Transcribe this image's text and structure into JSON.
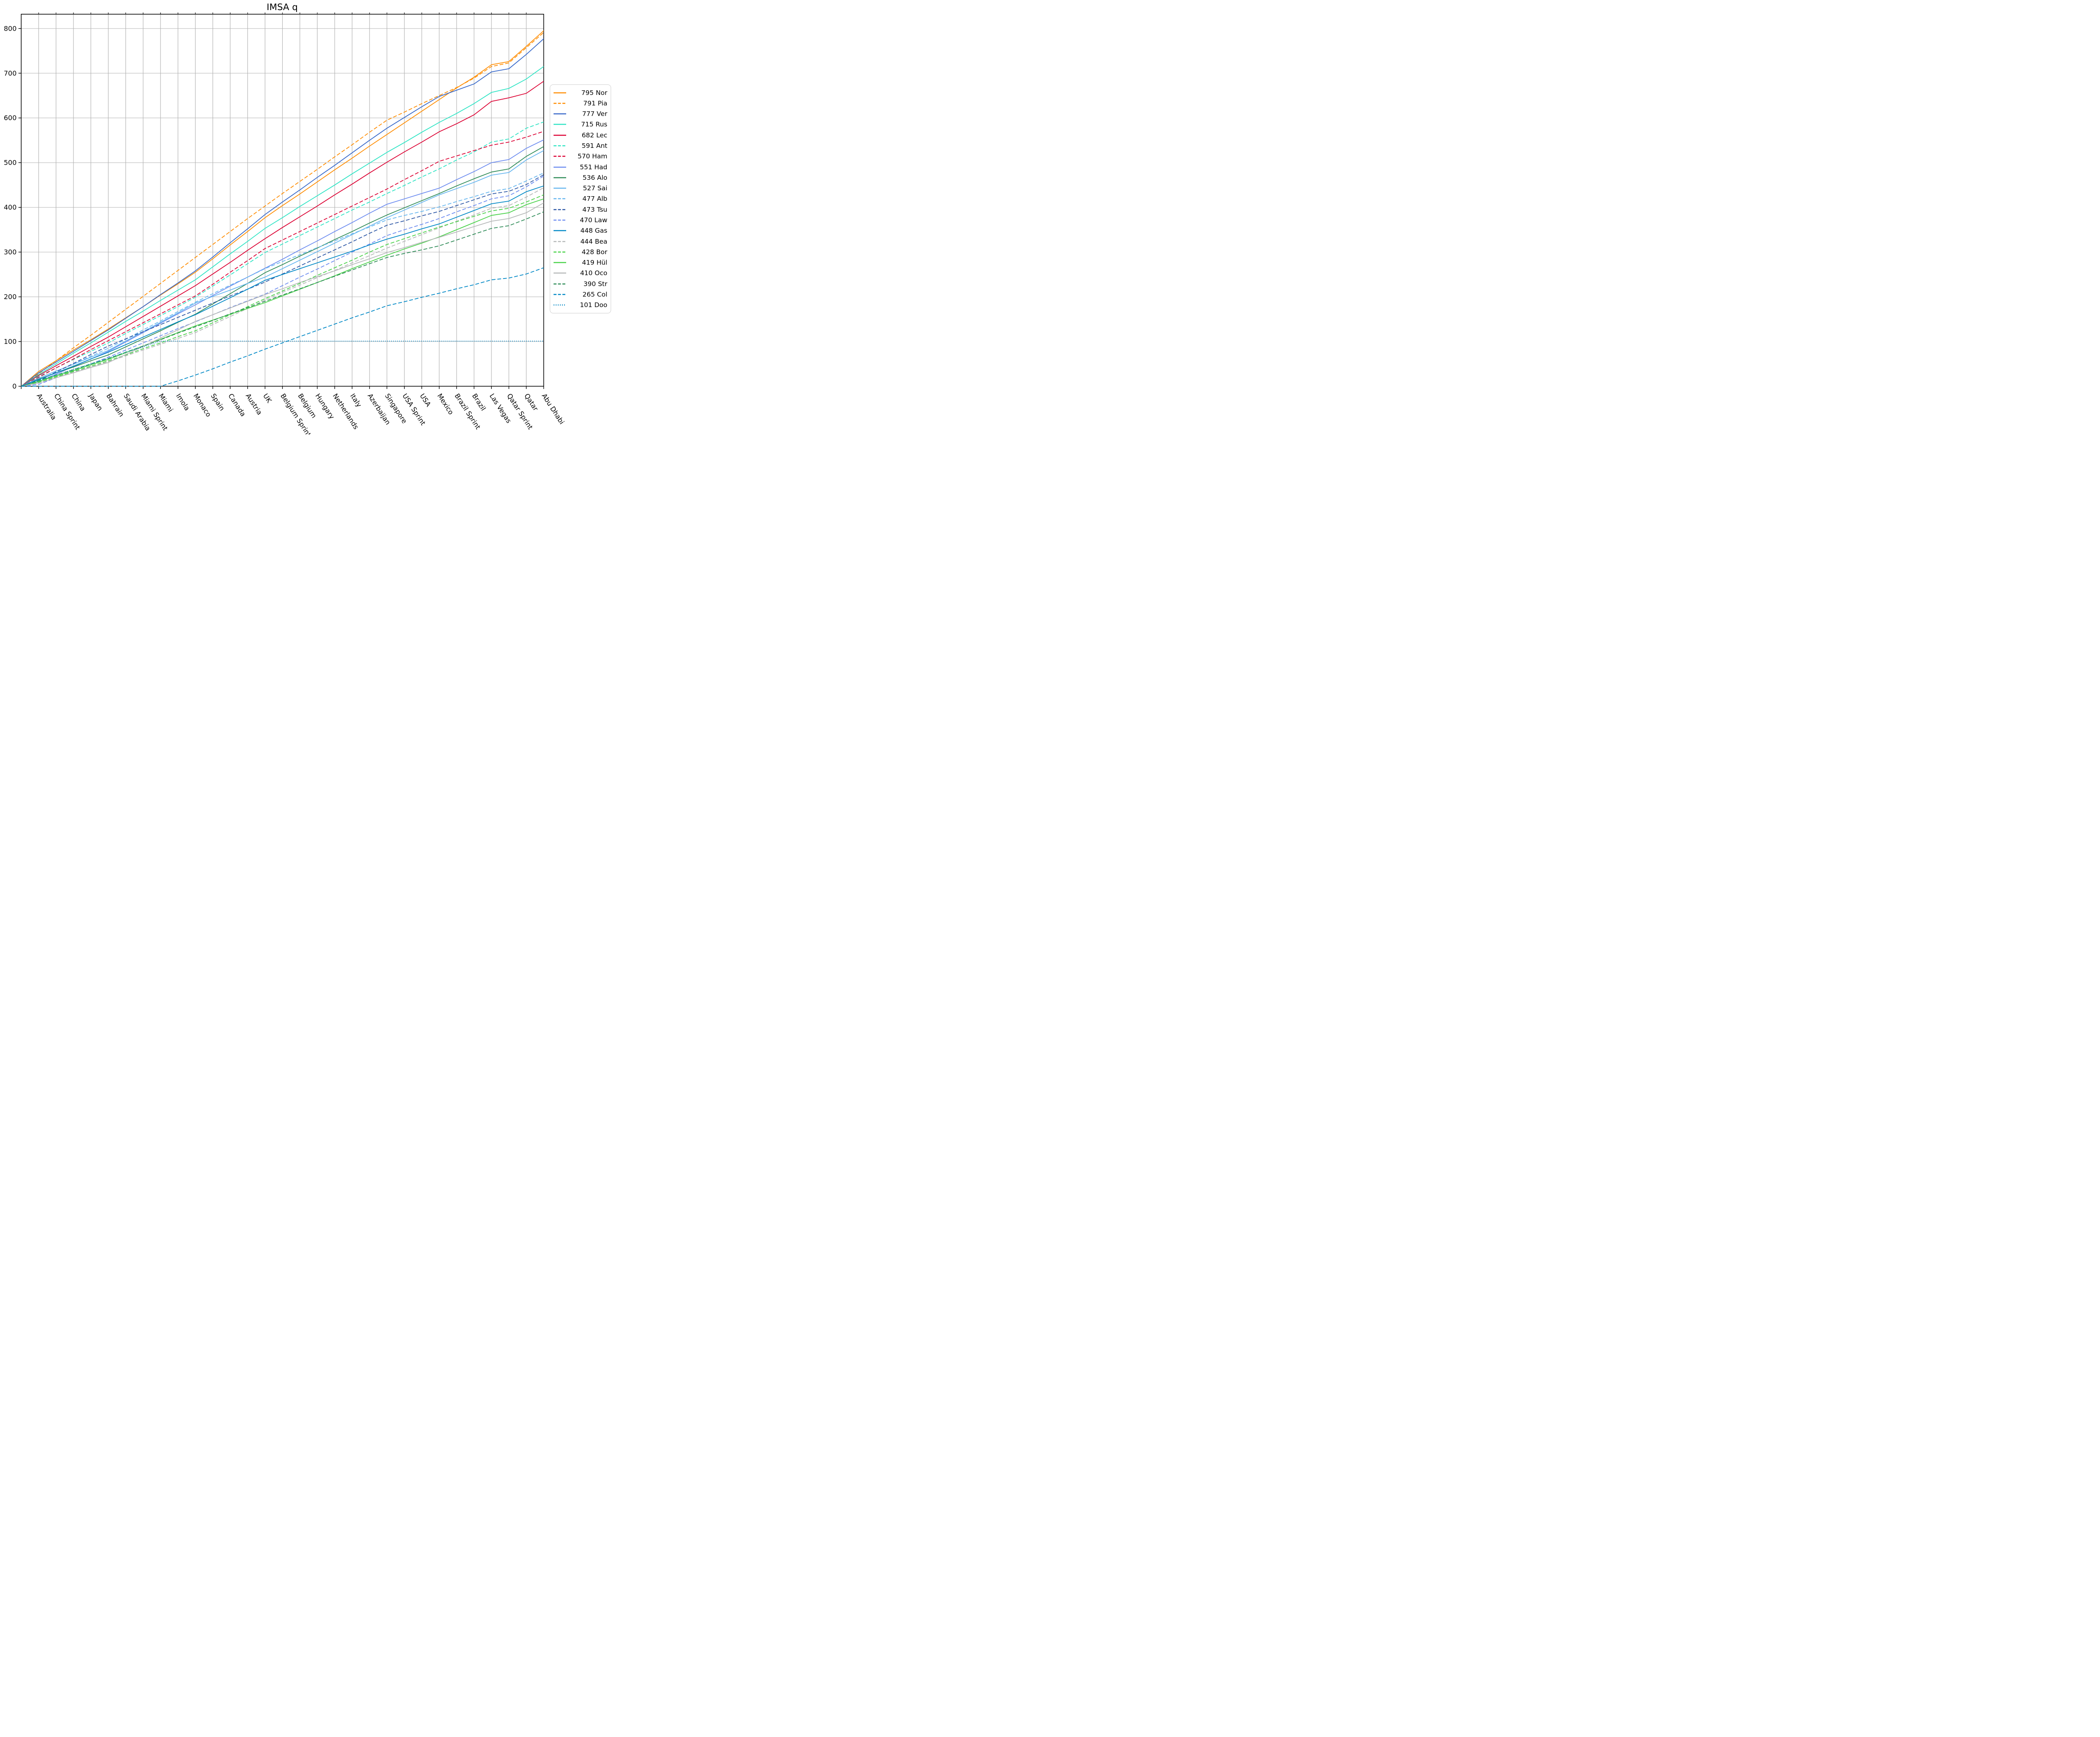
{
  "chart_data": {
    "type": "line",
    "title": "IMSA q",
    "xlabel": "",
    "ylabel": "",
    "ylim": [
      0,
      832
    ],
    "yticks": [
      0,
      100,
      200,
      300,
      400,
      500,
      600,
      700,
      800
    ],
    "grid": true,
    "grid_color": "#b3b3b3",
    "legend_position": "right",
    "x_tick_rotation": 57,
    "note_all_series_start_at_zero": true,
    "categories": [
      "Australia",
      "China Sprint",
      "China",
      "Japan",
      "Bahrain",
      "Saudi Arabia",
      "Miami Sprint",
      "Miami",
      "Imola",
      "Monaco",
      "Spain",
      "Canada",
      "Austria",
      "UK",
      "Belgium Sprint",
      "Belgium",
      "Hungary",
      "Netherlands",
      "Italy",
      "Azerbaijan",
      "Singapore",
      "USA Sprint",
      "USA",
      "Mexico",
      "Brazil Sprint",
      "Brazil",
      "Las Vegas",
      "Qatar Sprint",
      "Qatar",
      "Abu Dhabi"
    ],
    "series": [
      {
        "name": "795 Nor",
        "style": "solid",
        "color": "#ff8c00",
        "values": [
          33,
          57,
          81,
          104,
          128,
          153,
          178,
          204,
          229,
          255,
          285,
          316,
          346,
          377,
          404,
          430,
          457,
          484,
          510,
          537,
          563,
          589,
          615,
          641,
          667,
          691,
          719,
          726,
          760,
          795
        ]
      },
      {
        "name": "791 Pia",
        "style": "dashed",
        "color": "#ff8c00",
        "values": [
          28,
          57,
          86,
          114,
          143,
          172,
          201,
          230,
          259,
          288,
          317,
          346,
          375,
          403,
          431,
          458,
          485,
          513,
          540,
          568,
          595,
          613,
          632,
          650,
          668,
          689,
          715,
          723,
          757,
          791
        ]
      },
      {
        "name": "777 Ver",
        "style": "solid",
        "color": "#3567c9",
        "values": [
          30,
          54,
          78,
          102,
          126,
          152,
          178,
          205,
          231,
          258,
          289,
          321,
          352,
          384,
          412,
          439,
          467,
          494,
          522,
          550,
          577,
          601,
          625,
          648,
          662,
          676,
          703,
          710,
          742,
          777
        ]
      },
      {
        "name": "715 Rus",
        "style": "solid",
        "color": "#2ee4c4",
        "values": [
          26,
          50,
          74,
          97,
          121,
          145,
          168,
          192,
          215,
          238,
          267,
          296,
          324,
          353,
          377,
          402,
          426,
          450,
          475,
          499,
          523,
          545,
          568,
          590,
          610,
          632,
          657,
          666,
          687,
          715
        ]
      },
      {
        "name": "682 Lec",
        "style": "solid",
        "color": "#dc0032",
        "values": [
          24,
          46,
          67,
          89,
          110,
          133,
          156,
          179,
          202,
          225,
          251,
          277,
          304,
          330,
          355,
          379,
          403,
          428,
          452,
          477,
          501,
          524,
          546,
          569,
          587,
          607,
          637,
          645,
          655,
          682
        ]
      },
      {
        "name": "591 Ant",
        "style": "dashed",
        "color": "#2ee4c4",
        "values": [
          22,
          41,
          60,
          78,
          97,
          118,
          138,
          158,
          178,
          199,
          224,
          249,
          274,
          299,
          318,
          337,
          356,
          375,
          394,
          412,
          431,
          449,
          468,
          486,
          506,
          524,
          546,
          553,
          577,
          591
        ]
      },
      {
        "name": "570 Ham",
        "style": "dashed",
        "color": "#dc0032",
        "values": [
          20,
          41,
          61,
          82,
          102,
          122,
          142,
          162,
          182,
          202,
          228,
          255,
          281,
          308,
          327,
          346,
          365,
          384,
          403,
          422,
          441,
          462,
          482,
          503,
          515,
          527,
          539,
          546,
          557,
          570
        ]
      },
      {
        "name": "551 Had",
        "style": "solid",
        "color": "#6d8cf0",
        "values": [
          10,
          27,
          44,
          61,
          78,
          99,
          120,
          141,
          162,
          182,
          203,
          224,
          244,
          264,
          284,
          305,
          325,
          346,
          366,
          387,
          407,
          419,
          431,
          443,
          462,
          480,
          500,
          507,
          532,
          551
        ]
      },
      {
        "name": "536 Alo",
        "style": "solid",
        "color": "#2e8b57",
        "values": [
          16,
          30,
          43,
          57,
          70,
          88,
          106,
          124,
          143,
          161,
          184,
          207,
          230,
          254,
          272,
          291,
          309,
          328,
          346,
          365,
          383,
          399,
          415,
          431,
          448,
          464,
          479,
          486,
          514,
          536
        ]
      },
      {
        "name": "527 Sai",
        "style": "solid",
        "color": "#66b6ef",
        "values": [
          18,
          34,
          49,
          65,
          80,
          101,
          122,
          143,
          164,
          186,
          201,
          215,
          230,
          244,
          263,
          282,
          301,
          320,
          339,
          358,
          377,
          394,
          411,
          428,
          442,
          456,
          472,
          478,
          506,
          527
        ]
      },
      {
        "name": "477 Alb",
        "style": "dashed",
        "color": "#66b6ef",
        "values": [
          14,
          32,
          50,
          67,
          85,
          105,
          126,
          146,
          167,
          188,
          207,
          226,
          244,
          263,
          279,
          294,
          310,
          325,
          341,
          356,
          372,
          382,
          391,
          401,
          413,
          424,
          436,
          442,
          459,
          477
        ]
      },
      {
        "name": "473 Tsu",
        "style": "dashed",
        "color": "#2c56a5",
        "values": [
          12,
          32,
          51,
          71,
          90,
          106,
          122,
          138,
          154,
          170,
          186,
          202,
          217,
          233,
          251,
          269,
          287,
          305,
          323,
          342,
          360,
          370,
          381,
          391,
          404,
          417,
          430,
          436,
          451,
          473
        ]
      },
      {
        "name": "470 Law",
        "style": "dashed",
        "color": "#6d8cf0",
        "values": [
          4,
          19,
          34,
          50,
          65,
          81,
          97,
          113,
          129,
          144,
          160,
          176,
          191,
          206,
          225,
          244,
          262,
          281,
          300,
          318,
          337,
          350,
          362,
          375,
          390,
          404,
          419,
          426,
          446,
          470
        ]
      },
      {
        "name": "448 Gas",
        "style": "solid",
        "color": "#0088c6",
        "values": [
          15,
          30,
          45,
          61,
          76,
          93,
          110,
          127,
          144,
          160,
          179,
          198,
          217,
          237,
          250,
          263,
          276,
          289,
          302,
          316,
          329,
          340,
          352,
          363,
          378,
          393,
          408,
          414,
          435,
          448
        ]
      },
      {
        "name": "444 Bea",
        "style": "dashed",
        "color": "#b5b8b8",
        "values": [
          8,
          20,
          32,
          43,
          55,
          68,
          81,
          94,
          107,
          120,
          138,
          156,
          174,
          193,
          210,
          226,
          243,
          259,
          276,
          292,
          309,
          324,
          339,
          354,
          369,
          383,
          398,
          404,
          423,
          444
        ]
      },
      {
        "name": "428 Bor",
        "style": "dashed",
        "color": "#47d147",
        "values": [
          9,
          21,
          33,
          45,
          57,
          70,
          84,
          97,
          111,
          124,
          142,
          160,
          178,
          196,
          213,
          230,
          248,
          265,
          282,
          300,
          317,
          330,
          343,
          356,
          368,
          380,
          392,
          398,
          412,
          428
        ]
      },
      {
        "name": "419 Hül",
        "style": "solid",
        "color": "#47d147",
        "values": [
          11,
          23,
          35,
          48,
          60,
          75,
          90,
          105,
          120,
          135,
          148,
          161,
          174,
          187,
          202,
          217,
          232,
          247,
          263,
          278,
          293,
          307,
          320,
          334,
          350,
          366,
          382,
          388,
          406,
          419
        ]
      },
      {
        "name": "410 Oco",
        "style": "solid",
        "color": "#b5b8b8",
        "values": [
          7,
          19,
          30,
          42,
          53,
          71,
          89,
          108,
          126,
          145,
          160,
          175,
          190,
          205,
          218,
          232,
          245,
          258,
          272,
          285,
          299,
          310,
          322,
          333,
          345,
          357,
          369,
          375,
          388,
          410
        ]
      },
      {
        "name": "390 Str",
        "style": "dashed",
        "color": "#2e8b57",
        "values": [
          13,
          25,
          37,
          50,
          62,
          76,
          90,
          104,
          119,
          133,
          147,
          162,
          176,
          190,
          204,
          218,
          232,
          246,
          260,
          274,
          288,
          297,
          305,
          314,
          327,
          340,
          353,
          359,
          374,
          390
        ]
      },
      {
        "name": "265 Col",
        "style": "dashed",
        "color": "#0088c6",
        "values": [
          0,
          0,
          0,
          0,
          0,
          0,
          0,
          0,
          12,
          25,
          39,
          54,
          68,
          83,
          97,
          111,
          125,
          139,
          153,
          166,
          180,
          189,
          199,
          208,
          218,
          227,
          238,
          242,
          251,
          265
        ]
      },
      {
        "name": "101 Doo",
        "style": "dotted",
        "color": "#0088c6",
        "values": [
          13,
          25,
          38,
          50,
          63,
          76,
          88,
          101,
          101,
          101,
          101,
          101,
          101,
          101,
          101,
          101,
          101,
          101,
          101,
          101,
          101,
          101,
          101,
          101,
          101,
          101,
          101,
          101,
          101,
          101
        ]
      }
    ]
  }
}
